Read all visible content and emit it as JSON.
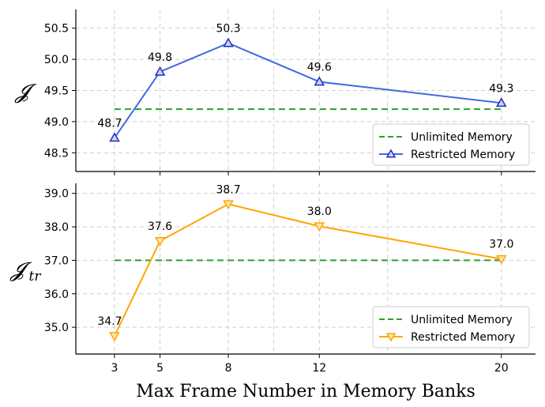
{
  "chart_data": [
    {
      "type": "line",
      "ylabel": "𝓙",
      "x": [
        3,
        5,
        8,
        12,
        20
      ],
      "ylim": [
        48.2,
        50.8
      ],
      "yticks": [
        "48.5",
        "49.0",
        "49.5",
        "50.0",
        "50.5"
      ],
      "grid": true,
      "legend_position": "lower-right",
      "series": [
        {
          "name": "Unlimited Memory",
          "style": "dashed",
          "color": "#2ca02c",
          "x": [
            3,
            20
          ],
          "values": [
            49.2,
            49.2
          ]
        },
        {
          "name": "Restricted Memory",
          "style": "solid",
          "marker": "triangle-up",
          "color": "#4169e1",
          "values": [
            48.74,
            49.8,
            50.26,
            49.64,
            49.3
          ],
          "labels": [
            "48.7",
            "49.8",
            "50.3",
            "49.6",
            "49.3"
          ]
        }
      ]
    },
    {
      "type": "line",
      "ylabel": "𝓙",
      "ylabel_sub": "tr",
      "x": [
        3,
        5,
        8,
        12,
        20
      ],
      "ylim": [
        34.2,
        39.3
      ],
      "yticks": [
        "35.0",
        "36.0",
        "37.0",
        "38.0",
        "39.0"
      ],
      "grid": true,
      "legend_position": "lower-right",
      "series": [
        {
          "name": "Unlimited Memory",
          "style": "dashed",
          "color": "#2ca02c",
          "x": [
            3,
            20
          ],
          "values": [
            37.0,
            37.0
          ]
        },
        {
          "name": "Restricted Memory",
          "style": "solid",
          "marker": "triangle-down",
          "color": "#ffa500",
          "values": [
            34.74,
            37.58,
            38.68,
            38.02,
            37.04
          ],
          "labels": [
            "34.7",
            "37.6",
            "38.7",
            "38.0",
            "37.0"
          ]
        }
      ]
    }
  ],
  "xlabel": "Max Frame Number in Memory Banks",
  "xticks": [
    "3",
    "5",
    "8",
    "12",
    "20"
  ]
}
